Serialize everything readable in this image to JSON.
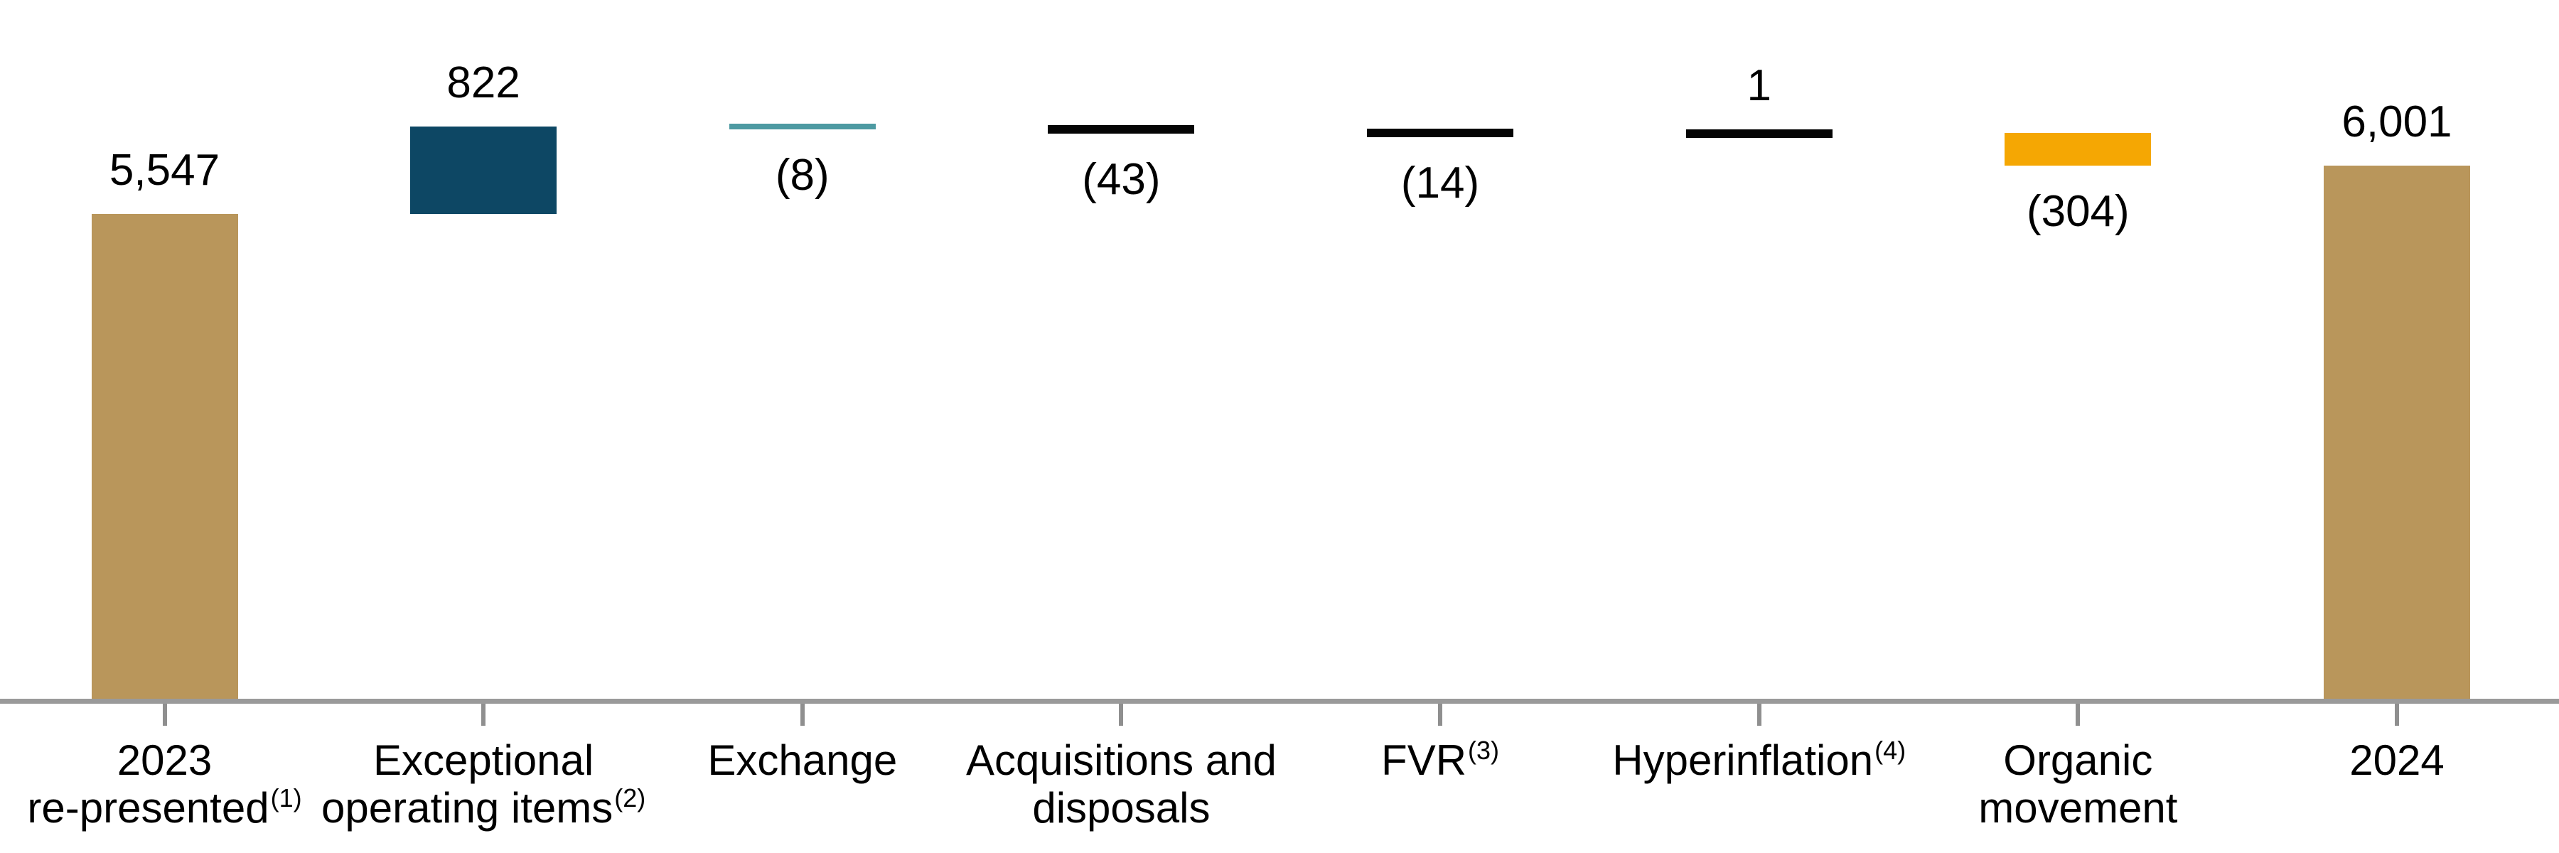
{
  "chart_data": {
    "type": "waterfall",
    "description": "Waterfall bridge chart from 2023 re-presented total to 2024 total",
    "items": [
      {
        "slug": "2023-re-presented",
        "label_lines": [
          {
            "text": "2023"
          },
          {
            "text": "re-presented",
            "sup": "(1)"
          }
        ],
        "kind": "total",
        "value": 5547,
        "value_label": "5,547",
        "value_label_position": "above",
        "color_key": "gold"
      },
      {
        "slug": "exceptional-operating-items",
        "label_lines": [
          {
            "text": "Exceptional"
          },
          {
            "text": "operating items",
            "sup": "(2)"
          }
        ],
        "kind": "delta",
        "value": 822,
        "value_label": "822",
        "value_label_position": "above",
        "color_key": "navy"
      },
      {
        "slug": "exchange",
        "label_lines": [
          {
            "text": "Exchange"
          }
        ],
        "kind": "delta",
        "value": -8,
        "value_label": "(8)",
        "value_label_position": "below",
        "color_key": "teal"
      },
      {
        "slug": "acquisitions-and-disposals",
        "label_lines": [
          {
            "text": "Acquisitions and"
          },
          {
            "text": "disposals"
          }
        ],
        "kind": "delta",
        "value": -43,
        "value_label": "(43)",
        "value_label_position": "below",
        "color_key": "black"
      },
      {
        "slug": "fvr",
        "label_lines": [
          {
            "text": "FVR",
            "sup": "(3)"
          }
        ],
        "kind": "delta",
        "value": -14,
        "value_label": "(14)",
        "value_label_position": "below",
        "color_key": "black"
      },
      {
        "slug": "hyperinflation",
        "label_lines": [
          {
            "text": "Hyperinflation",
            "sup": "(4)"
          }
        ],
        "kind": "delta",
        "value": 1,
        "value_label": "1",
        "value_label_position": "above",
        "color_key": "black"
      },
      {
        "slug": "organic-movement",
        "label_lines": [
          {
            "text": "Organic"
          },
          {
            "text": "movement"
          }
        ],
        "kind": "delta",
        "value": -304,
        "value_label": "(304)",
        "value_label_position": "below",
        "color_key": "amber"
      },
      {
        "slug": "2024",
        "label_lines": [
          {
            "text": "2024"
          }
        ],
        "kind": "total",
        "value": 6001,
        "value_label": "6,001",
        "value_label_position": "above",
        "color_key": "gold"
      }
    ],
    "colors": {
      "gold": "#B9965B",
      "navy": "#0D4764",
      "teal": "#4D9AA2",
      "black": "#050505",
      "amber": "#F5A703"
    },
    "axis": {
      "line_color": "#9A9A9A",
      "tick_color": "#8F8F8F",
      "gridlines": false,
      "value_axis_shown": false
    }
  }
}
